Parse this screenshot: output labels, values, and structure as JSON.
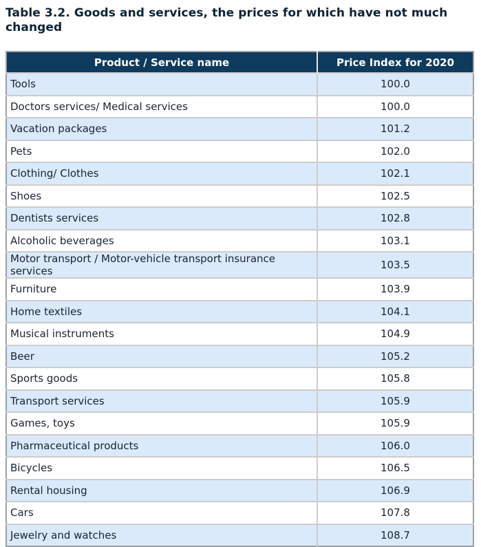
{
  "title": "Table 3.2. Goods and services, the prices for which have not much changed",
  "table": {
    "columns": [
      "Product / Service name",
      "Price Index for 2020"
    ],
    "rows": [
      {
        "product": "Tools",
        "index": "100.0"
      },
      {
        "product": "Doctors services/ Medical services",
        "index": "100.0"
      },
      {
        "product": "Vacation packages",
        "index": "101.2"
      },
      {
        "product": "Pets",
        "index": "102.0"
      },
      {
        "product": "Clothing/ Clothes",
        "index": "102.1"
      },
      {
        "product": "Shoes",
        "index": "102.5"
      },
      {
        "product": "Dentists services",
        "index": "102.8"
      },
      {
        "product": "Alcoholic beverages",
        "index": "103.1"
      },
      {
        "product": "Motor transport / Motor-vehicle transport insurance services",
        "index": "103.5"
      },
      {
        "product": "Furniture",
        "index": "103.9"
      },
      {
        "product": "Home textiles",
        "index": "104.1"
      },
      {
        "product": "Musical instruments",
        "index": "104.9"
      },
      {
        "product": "Beer",
        "index": "105.2"
      },
      {
        "product": "Sports goods",
        "index": "105.8"
      },
      {
        "product": "Transport services",
        "index": "105.9"
      },
      {
        "product": "Games, toys",
        "index": "105.9"
      },
      {
        "product": "Pharmaceutical products",
        "index": "106.0"
      },
      {
        "product": "Bicycles",
        "index": "106.5"
      },
      {
        "product": "Rental housing",
        "index": "106.9"
      },
      {
        "product": "Cars",
        "index": "107.8"
      },
      {
        "product": "Jewelry and watches",
        "index": "108.7"
      }
    ]
  },
  "colors": {
    "header_background": "#0e3a5e",
    "header_text": "#ffffff",
    "row_alternate": "#daeafb",
    "row_plain": "#ffffff",
    "title_text": "#0c2335",
    "grid_line": "#cccccc",
    "outer_border": "#9aa0a4"
  }
}
